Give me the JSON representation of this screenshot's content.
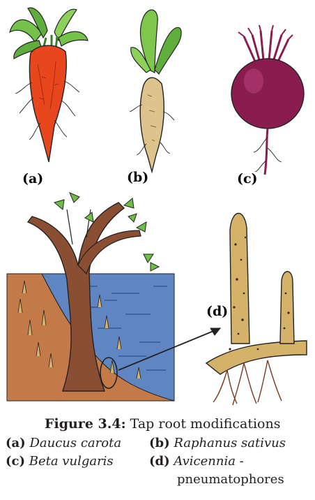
{
  "panels": [
    {
      "id": "a",
      "label": "(a)"
    },
    {
      "id": "b",
      "label": "(b)"
    },
    {
      "id": "c",
      "label": "(c)"
    },
    {
      "id": "d",
      "label": "(d)"
    }
  ],
  "caption": {
    "figure_number": "Figure 3.4:",
    "title": "Tap root modifications"
  },
  "legend": [
    {
      "key": "(a)",
      "species": "Daucus carota",
      "extra": ""
    },
    {
      "key": "(b)",
      "species": "Raphanus sativus",
      "extra": ""
    },
    {
      "key": "(c)",
      "species": "Beta vulgaris",
      "extra": ""
    },
    {
      "key": "(d)",
      "species": "Avicennia -",
      "extra": "pneumatophores"
    }
  ],
  "colors": {
    "carrot": "#e8471e",
    "carrot_leaf": "#6fbf44",
    "radish": "#dcc48c",
    "beet": "#8a1d4f",
    "water": "#5f86c2",
    "soil": "#c47a48",
    "bark": "#8a4e32",
    "pneumatophore": "#d4b26a"
  }
}
